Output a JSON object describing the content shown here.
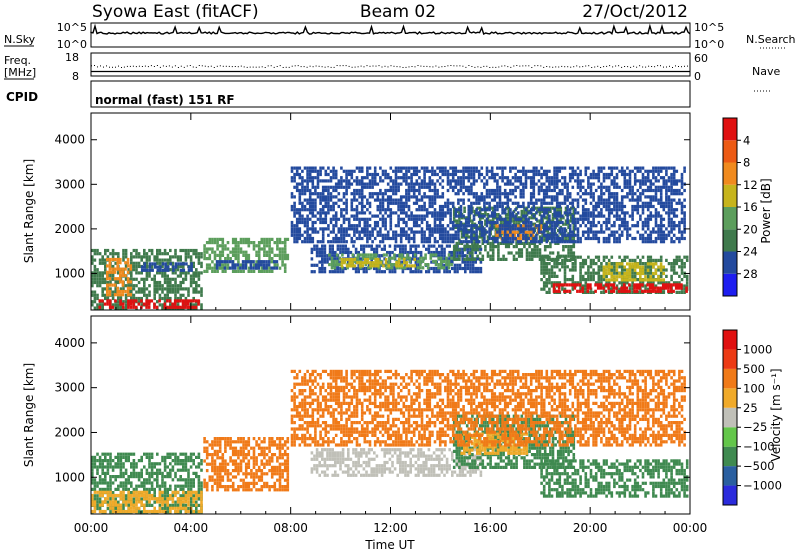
{
  "header": {
    "station": "Syowa East (fitACF)",
    "beam": "Beam 02",
    "date": "27/Oct/2012"
  },
  "status_panels": {
    "noise_label_left": "N.Sky",
    "noise_ticks_left": [
      "10^5",
      "10^0"
    ],
    "noise_label_right": "N.Search",
    "noise_ticks_right": [
      "10^5",
      "10^0"
    ],
    "freq_label": "Freq.",
    "freq_unit": "[MHz]",
    "freq_ticks": [
      "18",
      "8"
    ],
    "nave_label": "Nave",
    "nave_ticks": [
      "60",
      "0"
    ],
    "cpid_label": "CPID",
    "cpid_text": "normal (fast) 151 RF"
  },
  "chart_data": [
    {
      "type": "heatmap",
      "name": "power",
      "ylabel": "Slant Range [km]",
      "y_ticks": [
        1000,
        2000,
        3000,
        4000
      ],
      "ylim": [
        180,
        4600
      ],
      "xlim": [
        0,
        24
      ],
      "x_tick_labels": [
        "00:00",
        "04:00",
        "08:00",
        "12:00",
        "16:00",
        "20:00",
        "00:00"
      ],
      "xlabel": "Time UT",
      "colorbar": {
        "label": "Power [dB]",
        "ticks": [
          "4",
          "8",
          "12",
          "16",
          "20",
          "24",
          "28"
        ],
        "colors": [
          "#1e1ef0",
          "#234a9e",
          "#3f7a4c",
          "#5c9e5c",
          "#c6b41c",
          "#f08a1e",
          "#ec5a14",
          "#e01010"
        ]
      },
      "regions": [
        {
          "t0": 0.0,
          "t1": 4.4,
          "r0": 200,
          "r1": 1550,
          "color": "#3f7a4c"
        },
        {
          "t0": 0.6,
          "t1": 1.6,
          "r0": 550,
          "r1": 1350,
          "color": "#f08a1e"
        },
        {
          "t0": 0.3,
          "t1": 4.3,
          "r0": 220,
          "r1": 420,
          "color": "#e01010"
        },
        {
          "t0": 2.0,
          "t1": 4.0,
          "r0": 1050,
          "r1": 1250,
          "color": "#234a9e"
        },
        {
          "t0": 4.5,
          "t1": 7.9,
          "r0": 1050,
          "r1": 1800,
          "color": "#5c9e5c"
        },
        {
          "t0": 5.0,
          "t1": 7.5,
          "r0": 1150,
          "r1": 1300,
          "color": "#234a9e"
        },
        {
          "t0": 8.8,
          "t1": 15.6,
          "r0": 1050,
          "r1": 1650,
          "color": "#234a9e"
        },
        {
          "t0": 9.5,
          "t1": 14.5,
          "r0": 1150,
          "r1": 1450,
          "color": "#5c9e5c"
        },
        {
          "t0": 10.0,
          "t1": 13.0,
          "r0": 1200,
          "r1": 1350,
          "color": "#c6b41c"
        },
        {
          "t0": 14.5,
          "t1": 19.3,
          "r0": 1300,
          "r1": 2500,
          "color": "#3f7a4c"
        },
        {
          "t0": 16.2,
          "t1": 18.0,
          "r0": 1800,
          "r1": 2100,
          "color": "#f08a1e"
        },
        {
          "t0": 18.0,
          "t1": 23.9,
          "r0": 550,
          "r1": 1400,
          "color": "#3f7a4c"
        },
        {
          "t0": 18.5,
          "t1": 23.9,
          "r0": 600,
          "r1": 780,
          "color": "#e01010"
        },
        {
          "t0": 20.5,
          "t1": 23.0,
          "r0": 850,
          "r1": 1250,
          "color": "#c6b41c"
        },
        {
          "t0": 8.0,
          "t1": 23.8,
          "r0": 1700,
          "r1": 3400,
          "color": "#234a9e"
        }
      ]
    },
    {
      "type": "heatmap",
      "name": "velocity",
      "ylabel": "Slant Range [km]",
      "y_ticks": [
        1000,
        2000,
        3000,
        4000
      ],
      "ylim": [
        180,
        4600
      ],
      "xlim": [
        0,
        24
      ],
      "x_tick_labels": [
        "00:00",
        "04:00",
        "08:00",
        "12:00",
        "16:00",
        "20:00",
        "00:00"
      ],
      "xlabel": "Time UT",
      "colorbar": {
        "label": "Velocity [m s⁻¹]",
        "ticks": [
          "1000",
          "500",
          "100",
          "25",
          "−25",
          "−100",
          "−500",
          "−1000"
        ],
        "colors": [
          "#2b2bdc",
          "#2a5fa0",
          "#3f8a50",
          "#63c64a",
          "#c0c0b8",
          "#f0aa2a",
          "#f07a18",
          "#ec3a14",
          "#e01010"
        ]
      },
      "regions": [
        {
          "t0": 0.0,
          "t1": 4.4,
          "r0": 200,
          "r1": 1550,
          "color": "#3f8a50"
        },
        {
          "t0": 0.0,
          "t1": 4.4,
          "r0": 220,
          "r1": 700,
          "color": "#f0aa2a"
        },
        {
          "t0": 4.5,
          "t1": 7.9,
          "r0": 700,
          "r1": 1900,
          "color": "#f07a18"
        },
        {
          "t0": 8.8,
          "t1": 15.6,
          "r0": 1050,
          "r1": 1650,
          "color": "#c0c0b8"
        },
        {
          "t0": 14.5,
          "t1": 19.3,
          "r0": 1200,
          "r1": 2400,
          "color": "#3f8a50"
        },
        {
          "t0": 14.8,
          "t1": 17.5,
          "r0": 1500,
          "r1": 2000,
          "color": "#f0aa2a"
        },
        {
          "t0": 18.0,
          "t1": 23.9,
          "r0": 550,
          "r1": 1400,
          "color": "#3f8a50"
        },
        {
          "t0": 8.0,
          "t1": 23.8,
          "r0": 1700,
          "r1": 3400,
          "color": "#f07a18"
        }
      ]
    }
  ]
}
